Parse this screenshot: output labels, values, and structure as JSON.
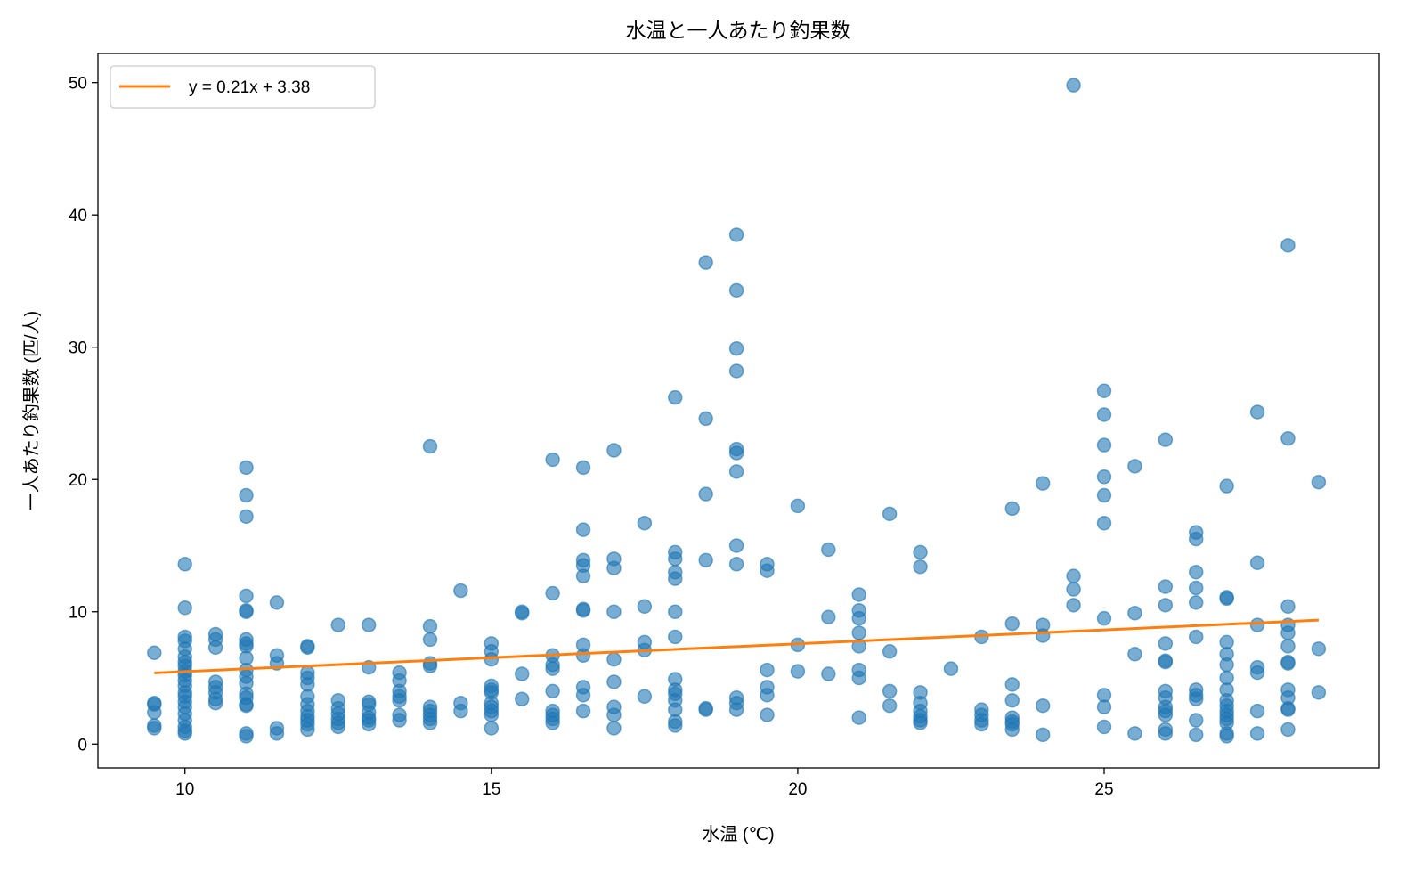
{
  "chart_data": {
    "type": "scatter",
    "title": "水温と一人あたり釣果数",
    "xlabel": "水温 (℃)",
    "ylabel": "一人あたり釣果数 (匹/人)",
    "xlim": [
      8.58,
      29.49
    ],
    "ylim": [
      -1.8,
      52.2
    ],
    "xticks": [
      10,
      15,
      20,
      25
    ],
    "yticks": [
      0,
      10,
      20,
      30,
      40,
      50
    ],
    "grid": false,
    "legend": {
      "placement": "top-left",
      "entries": [
        "y = 0.21x + 3.38"
      ]
    },
    "colors": {
      "points": "#1f77b4",
      "trend": "#ff7f0e"
    },
    "trendline": {
      "slope": 0.21,
      "intercept": 3.38,
      "x_range": [
        9.5,
        28.5
      ]
    },
    "points": [
      {
        "x": 9.5,
        "y": [
          6.9,
          3.1,
          3.0,
          2.4,
          1.4,
          1.2
        ]
      },
      {
        "x": 10,
        "y": [
          13.6,
          10.3,
          8.1,
          7.8,
          7.2,
          6.6,
          6.2,
          5.9,
          5.5,
          5.2,
          4.8,
          4.4,
          3.9,
          3.6,
          3.2,
          2.8,
          2.3,
          1.8,
          1.3,
          1.0,
          0.8
        ]
      },
      {
        "x": 10.5,
        "y": [
          8.3,
          7.9,
          7.3,
          4.7,
          4.3,
          3.9,
          3.4,
          3.1
        ]
      },
      {
        "x": 11,
        "y": [
          20.9,
          18.8,
          17.2,
          11.2,
          10.1,
          10.0,
          7.9,
          7.6,
          7.4,
          6.5,
          5.6,
          5.1,
          4.6,
          3.8,
          3.5,
          3.0,
          2.9,
          0.8,
          0.6
        ]
      },
      {
        "x": 11.5,
        "y": [
          10.7,
          6.7,
          6.1,
          1.2,
          0.8
        ]
      },
      {
        "x": 12,
        "y": [
          7.4,
          7.3,
          5.4,
          5.0,
          4.5,
          3.6,
          3.0,
          2.5,
          2.1,
          1.8,
          1.5,
          1.1
        ]
      },
      {
        "x": 12.5,
        "y": [
          9.0,
          3.3,
          2.7,
          2.3,
          1.9,
          1.6,
          1.3
        ]
      },
      {
        "x": 13,
        "y": [
          9.0,
          5.8,
          3.2,
          3.0,
          2.4,
          2.0,
          1.8,
          1.5
        ]
      },
      {
        "x": 13.5,
        "y": [
          5.4,
          4.8,
          4.0,
          3.6,
          3.3,
          2.2,
          1.8
        ]
      },
      {
        "x": 14,
        "y": [
          22.5,
          8.9,
          7.9,
          6.1,
          5.9,
          2.8,
          2.5,
          2.2,
          1.9,
          1.6
        ]
      },
      {
        "x": 14.5,
        "y": [
          11.6,
          3.1,
          2.5
        ]
      },
      {
        "x": 15,
        "y": [
          7.6,
          7.0,
          6.4,
          4.4,
          4.1,
          3.9,
          3.1,
          2.8,
          2.5,
          2.2,
          1.2
        ]
      },
      {
        "x": 15.5,
        "y": [
          10.0,
          9.9,
          5.3,
          3.4
        ]
      },
      {
        "x": 16,
        "y": [
          21.5,
          11.4,
          6.7,
          6.0,
          5.7,
          4.0,
          2.5,
          2.2,
          1.9,
          1.6
        ]
      },
      {
        "x": 16.5,
        "y": [
          20.9,
          16.2,
          13.9,
          13.5,
          12.7,
          10.2,
          10.1,
          7.5,
          6.7,
          4.3,
          3.7,
          2.5
        ]
      },
      {
        "x": 17,
        "y": [
          22.2,
          14.0,
          13.3,
          10.0,
          6.4,
          4.7,
          2.8,
          2.2,
          1.2
        ]
      },
      {
        "x": 17.5,
        "y": [
          16.7,
          10.4,
          7.7,
          7.1,
          3.6
        ]
      },
      {
        "x": 18,
        "y": [
          26.2,
          14.5,
          14.0,
          13.0,
          12.5,
          10.0,
          8.1,
          4.9,
          4.1,
          3.8,
          3.3,
          2.6,
          1.7,
          1.4
        ]
      },
      {
        "x": 18.5,
        "y": [
          36.4,
          24.6,
          18.9,
          13.9,
          2.7,
          2.6
        ]
      },
      {
        "x": 19,
        "y": [
          38.5,
          34.3,
          29.9,
          28.2,
          22.3,
          22.0,
          20.6,
          15.0,
          13.6,
          3.5,
          3.1,
          2.6
        ]
      },
      {
        "x": 19.5,
        "y": [
          13.6,
          13.1,
          5.6,
          4.3,
          3.7,
          2.2
        ]
      },
      {
        "x": 20,
        "y": [
          18.0,
          7.5,
          5.5
        ]
      },
      {
        "x": 20.5,
        "y": [
          14.7,
          9.6,
          5.3
        ]
      },
      {
        "x": 21,
        "y": [
          11.3,
          10.1,
          9.5,
          8.4,
          7.4,
          5.6,
          5.0,
          2.0
        ]
      },
      {
        "x": 21.5,
        "y": [
          17.4,
          7.0,
          4.0,
          2.9
        ]
      },
      {
        "x": 22,
        "y": [
          14.5,
          13.4,
          3.9,
          3.1,
          2.5,
          2.1,
          1.8,
          1.6
        ]
      },
      {
        "x": 22.5,
        "y": [
          5.7
        ]
      },
      {
        "x": 23,
        "y": [
          8.1,
          2.6,
          2.2,
          1.8,
          1.5
        ]
      },
      {
        "x": 23.5,
        "y": [
          17.8,
          9.1,
          4.5,
          3.3,
          2.0,
          1.7,
          1.5,
          1.1
        ]
      },
      {
        "x": 24,
        "y": [
          19.7,
          9.0,
          8.2,
          2.9,
          0.7
        ]
      },
      {
        "x": 24.5,
        "y": [
          49.8,
          12.7,
          11.7,
          10.5
        ]
      },
      {
        "x": 25,
        "y": [
          26.7,
          24.9,
          22.6,
          20.2,
          18.8,
          16.7,
          9.5,
          3.7,
          2.8,
          1.3
        ]
      },
      {
        "x": 25.5,
        "y": [
          21.0,
          9.9,
          6.8,
          0.8
        ]
      },
      {
        "x": 26,
        "y": [
          23.0,
          11.9,
          10.5,
          7.6,
          6.3,
          6.2,
          4.0,
          3.5,
          2.8,
          2.5,
          2.2,
          1.1,
          0.8
        ]
      },
      {
        "x": 26.5,
        "y": [
          16.0,
          15.5,
          13.0,
          11.8,
          10.7,
          8.1,
          4.1,
          3.7,
          3.4,
          1.8,
          0.7
        ]
      },
      {
        "x": 27,
        "y": [
          19.5,
          11.1,
          11.0,
          7.7,
          6.8,
          6.0,
          5.0,
          4.1,
          3.3,
          2.9,
          2.5,
          2.2,
          1.9,
          1.6,
          0.8,
          0.6
        ]
      },
      {
        "x": 27.5,
        "y": [
          25.1,
          13.7,
          9.0,
          5.8,
          5.4,
          2.5,
          0.8
        ]
      },
      {
        "x": 28,
        "y": [
          37.7,
          23.1,
          10.4,
          9.0,
          8.4,
          7.4,
          6.2,
          6.1,
          4.1,
          3.5,
          2.7,
          2.6,
          1.1
        ]
      },
      {
        "x": 28.5,
        "y": [
          19.8,
          7.2,
          3.9
        ]
      }
    ]
  }
}
